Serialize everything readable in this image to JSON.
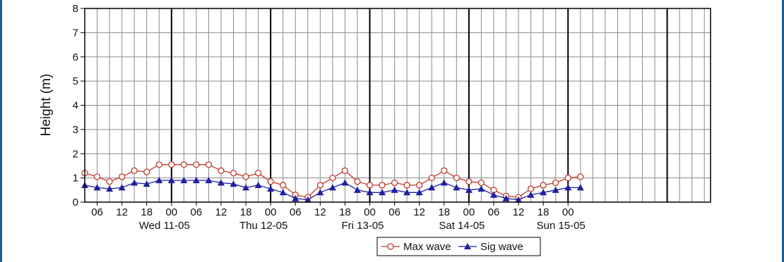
{
  "chart_data": {
    "type": "line",
    "ylabel": "Height (m)",
    "ylim": [
      0,
      8
    ],
    "yticks": [
      "0",
      "1",
      "2",
      "3",
      "4",
      "5",
      "6",
      "7",
      "8"
    ],
    "x_start": "Tue 10-05 03:00",
    "x_step_hours": 3,
    "xlim_hours": [
      0,
      151.5
    ],
    "hour_tick_labels": [
      "06",
      "12",
      "18",
      "00",
      "06",
      "12",
      "18",
      "00",
      "06",
      "12",
      "18",
      "00",
      "06",
      "12",
      "18",
      "00",
      "06",
      "12",
      "18",
      "00"
    ],
    "day_labels": [
      "Wed 11-05",
      "Thu 12-05",
      "Fri 13-05",
      "Sat 14-05",
      "Sun 15-05"
    ],
    "grid": true,
    "legend_position": "bottom-center",
    "series": [
      {
        "name": "Max wave",
        "color": "#c0392b",
        "marker": "circle-open",
        "values": [
          1.2,
          1.05,
          0.85,
          1.05,
          1.3,
          1.25,
          1.55,
          1.55,
          1.55,
          1.55,
          1.55,
          1.3,
          1.2,
          1.05,
          1.2,
          0.85,
          0.7,
          0.3,
          0.2,
          0.7,
          1.0,
          1.3,
          0.85,
          0.7,
          0.7,
          0.8,
          0.7,
          0.7,
          1.0,
          1.3,
          1.0,
          0.85,
          0.8,
          0.5,
          0.25,
          0.2,
          0.55,
          0.7,
          0.8,
          1.0,
          1.05
        ]
      },
      {
        "name": "Sig wave",
        "color": "#1f1fa0",
        "marker": "triangle-filled",
        "values": [
          0.7,
          0.6,
          0.55,
          0.6,
          0.8,
          0.75,
          0.9,
          0.9,
          0.9,
          0.9,
          0.9,
          0.8,
          0.75,
          0.6,
          0.7,
          0.55,
          0.4,
          0.15,
          0.1,
          0.4,
          0.6,
          0.8,
          0.5,
          0.4,
          0.4,
          0.5,
          0.4,
          0.4,
          0.6,
          0.8,
          0.6,
          0.5,
          0.55,
          0.3,
          0.15,
          0.1,
          0.3,
          0.4,
          0.5,
          0.6,
          0.6
        ]
      }
    ]
  }
}
